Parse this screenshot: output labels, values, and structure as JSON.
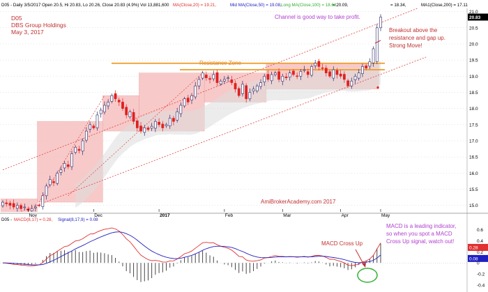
{
  "header": "D05 - Daily 3/5/2017 Open 20.5, Hi 20.83, Lo 20.26, Close 20.83 (4.9%) Vol 13,881,600",
  "header_ma": [
    {
      "text": "MA(Close,20) = 19.21,",
      "color": "#e03030"
    },
    {
      "text": "Mid MA(Close,50) = 19.08,",
      "color": "#2020c0"
    },
    {
      "text": "Long MA(Close,100) = 18.63,",
      "color": "#30b030"
    },
    {
      "text": "= 20.09,",
      "color": "#000000"
    },
    {
      "text": "= 18.34,",
      "color": "#000000"
    },
    {
      "text": "MA1(Close,200) = 17.11",
      "color": "#000000"
    }
  ],
  "macd_header": {
    "prefix": "D05 -",
    "macd": "MACD(8,17) = 0.28,",
    "signal": "Signal(8,17,9) = 0.08"
  },
  "labels": {
    "ticker": "D05",
    "company": "DBS Group Holdings",
    "date": "May 3, 2017",
    "channel": "Channel is good  way to take profit.",
    "breakout": [
      "Breakout above the",
      "resistance and gap up.",
      "Strong Move!"
    ],
    "resistance": "Resistance Zone",
    "watermark": "AmiBrokerAcademy.com  2017",
    "macd_note": [
      "MACD is a leading indicator,",
      "so when you spot a MACD",
      "Cross Up signal, watch out!"
    ],
    "macd_cross": "MACD Cross Up"
  },
  "colors": {
    "bull": "#ffffff",
    "bear": "#e02020",
    "box": "#f7c0c0",
    "resistance": "#f0a030",
    "channel": "#e04040",
    "macd": "#e03030",
    "signal": "#2020c0",
    "annotation": "#c03030",
    "note": "#b040d0",
    "ellipse": "#30b030"
  },
  "chart_data": [
    {
      "type": "candlestick",
      "title": "D05",
      "x": [
        "Nov",
        "Dec",
        "2017",
        "Feb",
        "Mar",
        "Apr",
        "May"
      ],
      "xlabel": "",
      "ylabel": "",
      "ylim": [
        14.8,
        21.1
      ],
      "yticks": [
        "21.0",
        "20.5",
        "20.0",
        "19.5",
        "19.0",
        "18.5",
        "18.0",
        "17.5",
        "17.0",
        "16.5",
        "16.0",
        "15.5",
        "15.0"
      ],
      "last_value": "20.83",
      "closes": [
        15.1,
        15.05,
        15.0,
        14.95,
        15.0,
        14.9,
        14.95,
        14.85,
        14.9,
        14.95,
        15.0,
        15.3,
        15.6,
        15.8,
        15.7,
        16.0,
        16.1,
        16.3,
        16.2,
        16.6,
        16.8,
        16.7,
        17.0,
        17.3,
        17.5,
        17.4,
        17.8,
        17.95,
        18.1,
        18.2,
        18.4,
        18.3,
        18.2,
        18.0,
        17.8,
        17.9,
        17.6,
        17.4,
        17.3,
        17.4,
        17.35,
        17.45,
        17.6,
        17.5,
        17.4,
        17.5,
        17.7,
        17.6,
        17.9,
        18.1,
        18.3,
        18.2,
        18.4,
        18.7,
        18.9,
        19.1,
        18.95,
        18.9,
        19.05,
        18.8,
        18.85,
        18.9,
        18.95,
        18.8,
        18.6,
        18.4,
        18.75,
        18.3,
        18.5,
        18.6,
        18.7,
        18.8,
        19.0,
        18.9,
        19.05,
        19.1,
        18.9,
        19.0,
        18.95,
        19.1,
        19.05,
        19.0,
        19.15,
        19.2,
        19.05,
        19.3,
        19.4,
        19.3,
        19.25,
        19.1,
        19.0,
        19.2,
        19.05,
        19.0,
        18.9,
        18.7,
        18.85,
        19.0,
        19.1,
        19.3,
        19.25,
        19.45,
        19.85,
        20.5,
        20.83
      ],
      "series": [
        {
          "name": "MA(Close,20)"
        },
        {
          "name": "Mid MA(Close,50)"
        },
        {
          "name": "Long MA(Close,100)"
        },
        {
          "name": "MA1(Close,200)"
        }
      ],
      "annotations": {
        "resistance_zone": [
          19.2,
          19.4
        ],
        "channel_upper": [
          [
            0,
            16.1
          ],
          [
            105,
            20.7
          ]
        ],
        "channel_lower": [
          [
            0,
            14.6
          ],
          [
            105,
            19.1
          ]
        ],
        "boxes": [
          {
            "from": 0,
            "to": 9,
            "low": 14.8,
            "high": 15.2
          },
          {
            "from": 10,
            "to": 27,
            "low": 15.1,
            "high": 17.6
          },
          {
            "from": 28,
            "to": 37,
            "low": 17.3,
            "high": 18.4
          },
          {
            "from": 38,
            "to": 55,
            "low": 17.3,
            "high": 19.1
          },
          {
            "from": 56,
            "to": 72,
            "low": 18.2,
            "high": 19.1
          },
          {
            "from": 73,
            "to": 103,
            "low": 18.6,
            "high": 19.4
          }
        ]
      }
    },
    {
      "type": "line",
      "title": "MACD",
      "ylim": [
        -0.5,
        0.72
      ],
      "yticks": [
        "0.6",
        "0.4",
        "0.2",
        "0",
        "-0.2",
        "-0.4"
      ],
      "series": [
        {
          "name": "MACD(8,17)",
          "last": "0.28"
        },
        {
          "name": "Signal(8,17,9)",
          "last": "0.08"
        }
      ]
    }
  ]
}
